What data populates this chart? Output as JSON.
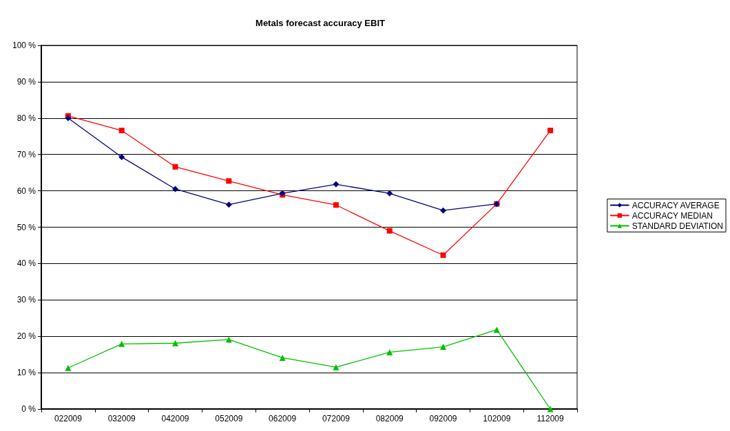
{
  "chart_data": {
    "type": "line",
    "title": "Metals forecast accuracy EBIT",
    "categories": [
      "022009",
      "032009",
      "042009",
      "052009",
      "062009",
      "072009",
      "082009",
      "092009",
      "102009",
      "112009"
    ],
    "series": [
      {
        "name": "ACCURACY AVERAGE",
        "color": "#000080",
        "marker": "diamond",
        "values": [
          80.0,
          69.3,
          60.5,
          56.2,
          59.3,
          61.8,
          59.3,
          54.6,
          56.4,
          null
        ]
      },
      {
        "name": "ACCURACY MEDIAN",
        "color": "#ff0000",
        "marker": "square",
        "values": [
          80.6,
          76.6,
          66.6,
          62.7,
          58.9,
          56.1,
          49.0,
          42.3,
          56.4,
          76.6
        ]
      },
      {
        "name": "STANDARD DEVIATION",
        "color": "#00c000",
        "marker": "triangle",
        "values": [
          11.3,
          17.9,
          18.1,
          19.1,
          14.1,
          11.5,
          15.6,
          17.1,
          21.8,
          0
        ]
      }
    ],
    "ylim": [
      0,
      100
    ],
    "yticks": [
      {
        "value": 0,
        "label": "0 %"
      },
      {
        "value": 10,
        "label": "10 %"
      },
      {
        "value": 20,
        "label": "20 %"
      },
      {
        "value": 30,
        "label": "30 %"
      },
      {
        "value": 40,
        "label": "40 %"
      },
      {
        "value": 50,
        "label": "50 %"
      },
      {
        "value": 60,
        "label": "60 %"
      },
      {
        "value": 70,
        "label": "70 %"
      },
      {
        "value": 80,
        "label": "80 %"
      },
      {
        "value": 90,
        "label": "90 %"
      },
      {
        "value": 100,
        "label": "100 %"
      }
    ],
    "grid": "y",
    "legend": "right",
    "line_style": "solid"
  }
}
